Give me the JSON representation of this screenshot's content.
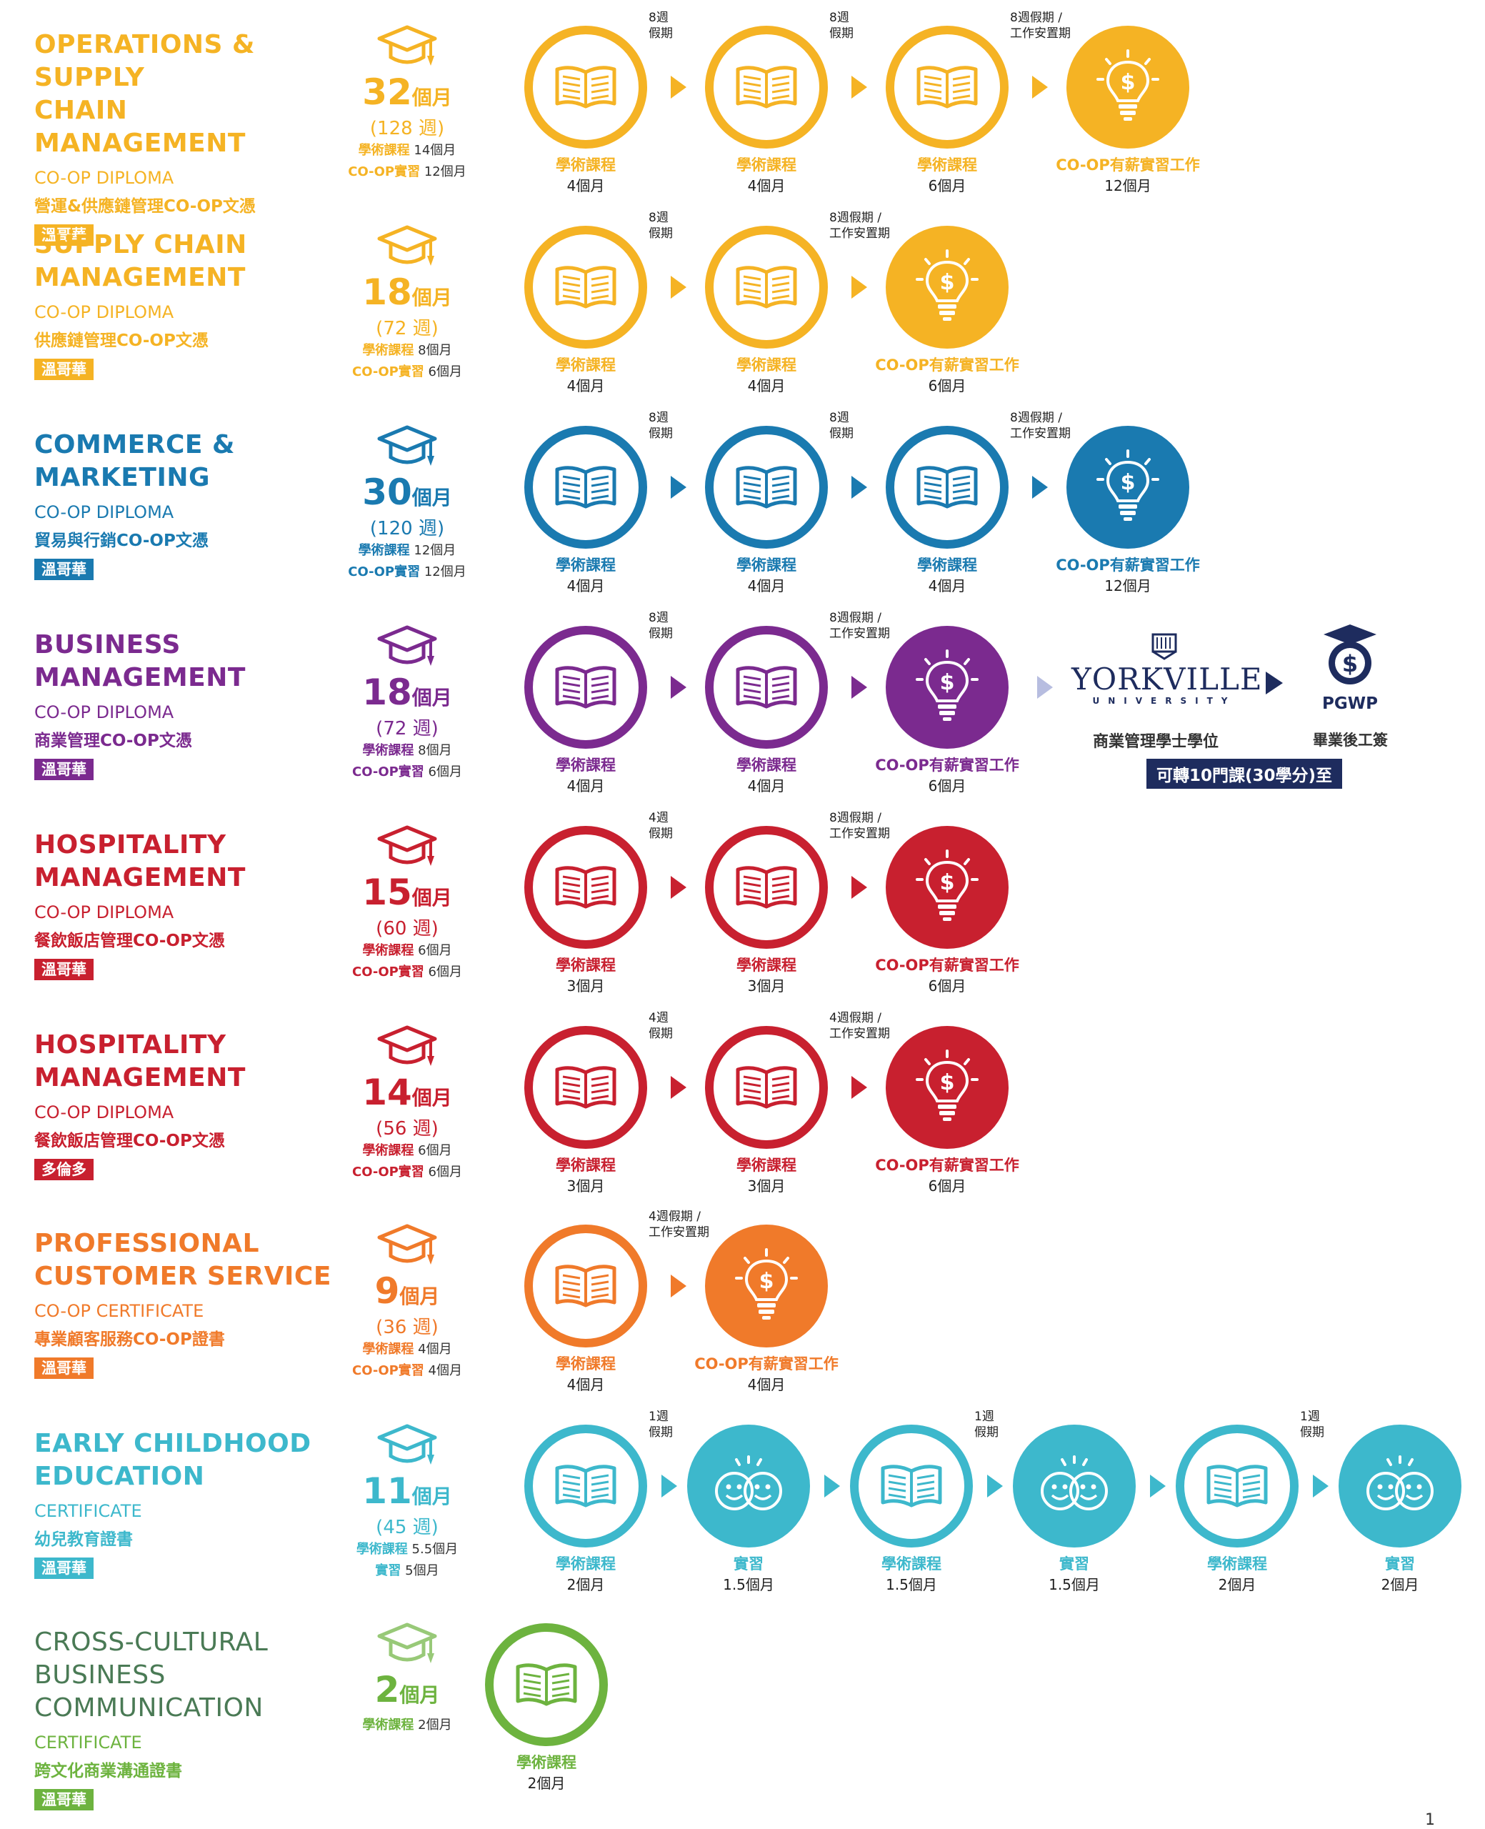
{
  "programs": [
    {
      "name": "OPERATIONS & SUPPLY\nCHAIN MANAGEMENT",
      "type": "CO-OP DIPLOMA",
      "cn_name": "營運&供應鏈管理CO-OP文憑",
      "campus": "溫哥華",
      "color": "#F5B324",
      "duration_num": "32",
      "duration_unit": "個月",
      "weeks": "(128 週)",
      "academic_label": "學術課程",
      "academic_months": "14個月",
      "coop_label": "CO-OP實習",
      "coop_months": "12個月",
      "steps": [
        {
          "icon": "book",
          "label": "學術課程",
          "dur": "4個月"
        },
        {
          "icon": "book",
          "label": "學術課程",
          "dur": "4個月"
        },
        {
          "icon": "book",
          "label": "學術課程",
          "dur": "6個月"
        },
        {
          "icon": "bulb",
          "label": "CO-OP有薪實習工作",
          "dur": "12個月"
        }
      ],
      "gaps": [
        "8週\n假期",
        "8週\n假期",
        "8週假期 /\n工作安置期"
      ]
    },
    {
      "name": "SUPPLY CHAIN\nMANAGEMENT",
      "type": "CO-OP DIPLOMA",
      "cn_name": "供應鏈管理CO-OP文憑",
      "campus": "溫哥華",
      "color": "#F5B324",
      "duration_num": "18",
      "duration_unit": "個月",
      "weeks": "(72 週)",
      "academic_label": "學術課程",
      "academic_months": "8個月",
      "coop_label": "CO-OP實習",
      "coop_months": "6個月",
      "steps": [
        {
          "icon": "book",
          "label": "學術課程",
          "dur": "4個月"
        },
        {
          "icon": "book",
          "label": "學術課程",
          "dur": "4個月"
        },
        {
          "icon": "bulb",
          "label": "CO-OP有薪實習工作",
          "dur": "6個月"
        }
      ],
      "gaps": [
        "8週\n假期",
        "8週假期 /\n工作安置期"
      ]
    },
    {
      "name": "COMMERCE &\nMARKETING",
      "type": "CO-OP DIPLOMA",
      "cn_name": "貿易與行銷CO-OP文憑",
      "campus": "溫哥華",
      "color": "#1A7AB0",
      "duration_num": "30",
      "duration_unit": "個月",
      "weeks": "(120 週)",
      "academic_label": "學術課程",
      "academic_months": "12個月",
      "coop_label": "CO-OP實習",
      "coop_months": "12個月",
      "steps": [
        {
          "icon": "book",
          "label": "學術課程",
          "dur": "4個月"
        },
        {
          "icon": "book",
          "label": "學術課程",
          "dur": "4個月"
        },
        {
          "icon": "book",
          "label": "學術課程",
          "dur": "4個月"
        },
        {
          "icon": "bulb",
          "label": "CO-OP有薪實習工作",
          "dur": "12個月"
        }
      ],
      "gaps": [
        "8週\n假期",
        "8週\n假期",
        "8週假期 /\n工作安置期"
      ]
    },
    {
      "name": "BUSINESS\nMANAGEMENT",
      "type": "CO-OP DIPLOMA",
      "cn_name": "商業管理CO-OP文憑",
      "campus": "溫哥華",
      "color": "#7B2A8F",
      "duration_num": "18",
      "duration_unit": "個月",
      "weeks": "(72 週)",
      "academic_label": "學術課程",
      "academic_months": "8個月",
      "coop_label": "CO-OP實習",
      "coop_months": "6個月",
      "steps": [
        {
          "icon": "book",
          "label": "學術課程",
          "dur": "4個月"
        },
        {
          "icon": "book",
          "label": "學術課程",
          "dur": "4個月"
        },
        {
          "icon": "bulb",
          "label": "CO-OP有薪實習工作",
          "dur": "6個月"
        }
      ],
      "gaps": [
        "8週\n假期",
        "8週假期 /\n工作安置期"
      ]
    },
    {
      "name": "HOSPITALITY\nMANAGEMENT",
      "type": "CO-OP DIPLOMA",
      "cn_name": "餐飲飯店管理CO-OP文憑",
      "campus": "溫哥華",
      "color": "#C8202F",
      "duration_num": "15",
      "duration_unit": "個月",
      "weeks": "(60 週)",
      "academic_label": "學術課程",
      "academic_months": "6個月",
      "coop_label": "CO-OP實習",
      "coop_months": "6個月",
      "steps": [
        {
          "icon": "book",
          "label": "學術課程",
          "dur": "3個月"
        },
        {
          "icon": "book",
          "label": "學術課程",
          "dur": "3個月"
        },
        {
          "icon": "bulb",
          "label": "CO-OP有薪實習工作",
          "dur": "6個月"
        }
      ],
      "gaps": [
        "4週\n假期",
        "8週假期 /\n工作安置期"
      ]
    },
    {
      "name": "HOSPITALITY\nMANAGEMENT",
      "type": "CO-OP DIPLOMA",
      "cn_name": "餐飲飯店管理CO-OP文憑",
      "campus": "多倫多",
      "color": "#C8202F",
      "duration_num": "14",
      "duration_unit": "個月",
      "weeks": "(56 週)",
      "academic_label": "學術課程",
      "academic_months": "6個月",
      "coop_label": "CO-OP實習",
      "coop_months": "6個月",
      "steps": [
        {
          "icon": "book",
          "label": "學術課程",
          "dur": "3個月"
        },
        {
          "icon": "book",
          "label": "學術課程",
          "dur": "3個月"
        },
        {
          "icon": "bulb",
          "label": "CO-OP有薪實習工作",
          "dur": "6個月"
        }
      ],
      "gaps": [
        "4週\n假期",
        "4週假期 /\n工作安置期"
      ]
    },
    {
      "name": "PROFESSIONAL\nCUSTOMER SERVICE",
      "type": "CO-OP CERTIFICATE",
      "cn_name": "專業顧客服務CO-OP證書",
      "campus": "溫哥華",
      "color": "#F07A2A",
      "duration_num": "9",
      "duration_unit": "個月",
      "weeks": "(36 週)",
      "academic_label": "學術課程",
      "academic_months": "4個月",
      "coop_label": "CO-OP實習",
      "coop_months": "4個月",
      "steps": [
        {
          "icon": "book",
          "label": "學術課程",
          "dur": "4個月"
        },
        {
          "icon": "bulb",
          "label": "CO-OP有薪實習工作",
          "dur": "4個月"
        }
      ],
      "gaps": [
        "4週假期 /\n工作安置期"
      ]
    },
    {
      "name": "EARLY CHILDHOOD\nEDUCATION",
      "type": "CERTIFICATE",
      "cn_name": "幼兒教育證書",
      "campus": "溫哥華",
      "color": "#3DB8CC",
      "duration_num": "11",
      "duration_unit": "個月",
      "weeks": "(45 週)",
      "academic_label": "學術課程",
      "academic_months": "5.5個月",
      "coop_label": "實習",
      "coop_months": "5個月",
      "steps": [
        {
          "icon": "book",
          "label": "學術課程",
          "dur": "2個月"
        },
        {
          "icon": "faces",
          "label": "實習",
          "dur": "1.5個月"
        },
        {
          "icon": "book",
          "label": "學術課程",
          "dur": "1.5個月"
        },
        {
          "icon": "faces",
          "label": "實習",
          "dur": "1.5個月"
        },
        {
          "icon": "book",
          "label": "學術課程",
          "dur": "2個月"
        },
        {
          "icon": "faces",
          "label": "實習",
          "dur": "2個月"
        }
      ],
      "gaps": [
        "1週\n假期",
        "",
        "1週\n假期",
        "",
        "1週\n假期"
      ]
    },
    {
      "name": "CROSS-CULTURAL\nBUSINESS\nCOMMUNICATION",
      "type": "CERTIFICATE",
      "cn_name": "跨文化商業溝通證書",
      "campus": "溫哥華",
      "color": "#6DB33F",
      "duration_num": "2",
      "duration_unit": "個月",
      "weeks": "",
      "academic_label": "學術課程",
      "academic_months": "2個月",
      "coop_label": "",
      "coop_months": "",
      "steps": [
        {
          "icon": "book",
          "label": "學術課程",
          "dur": "2個月"
        }
      ],
      "gaps": []
    }
  ],
  "yorkville": {
    "logo_text": "YORKVILLE",
    "logo_sub": "UNIVERSITY",
    "degree": "商業管理學士學位",
    "pgwp_label": "PGWP",
    "pgwp_caption": "畢業後工簽",
    "transfer_note": "可轉10門課(30學分)至",
    "navy": "#1E2C5E"
  },
  "page_number": "1"
}
